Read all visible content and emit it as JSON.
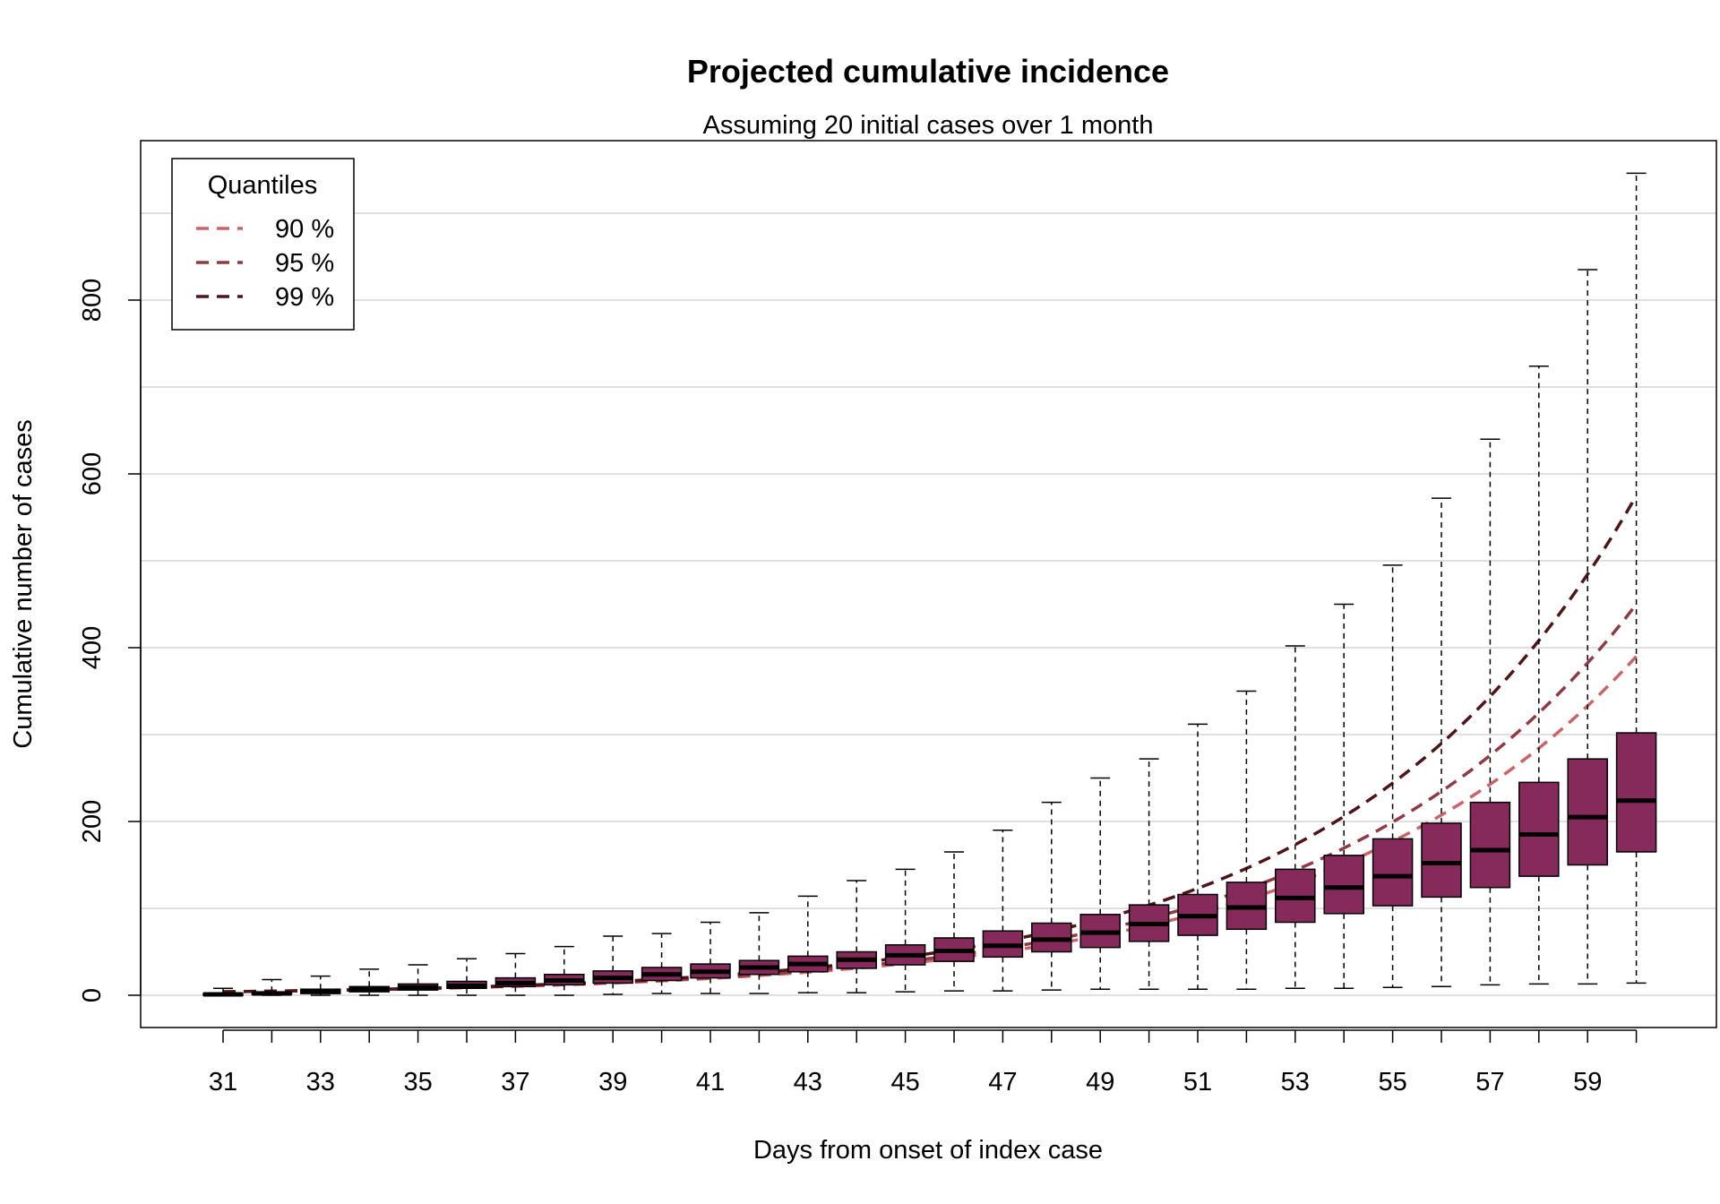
{
  "colors": {
    "box_fill": "#852a5a",
    "q90": "#c96468",
    "q95": "#8f3a45",
    "q99": "#4d1519",
    "grid": "#d6d6d6"
  },
  "chart_data": {
    "type": "boxplot",
    "title": "Projected cumulative incidence",
    "subtitle": "Assuming 20 initial cases over 1 month",
    "xlabel": "Days from onset of index case",
    "ylabel": "Cumulative number of cases",
    "ylim": [
      -38,
      980
    ],
    "y_ticks": [
      0,
      200,
      400,
      600,
      800
    ],
    "x_tick_labels": [
      31,
      33,
      35,
      37,
      39,
      41,
      43,
      45,
      47,
      49,
      51,
      53,
      55,
      57,
      59
    ],
    "grid": true,
    "legend": {
      "title": "Quantiles",
      "position": "top-left",
      "entries": [
        {
          "label": "90 %",
          "color_key": "q90"
        },
        {
          "label": "95 %",
          "color_key": "q95"
        },
        {
          "label": "99 %",
          "color_key": "q99"
        }
      ]
    },
    "boxes": [
      {
        "day": 31,
        "min": 0,
        "q1": 0,
        "median": 1,
        "q3": 2,
        "max": 8
      },
      {
        "day": 32,
        "min": 0,
        "q1": 1,
        "median": 2,
        "q3": 4,
        "max": 18
      },
      {
        "day": 33,
        "min": 0,
        "q1": 2,
        "median": 4,
        "q3": 7,
        "max": 22
      },
      {
        "day": 34,
        "min": 0,
        "q1": 4,
        "median": 7,
        "q3": 10,
        "max": 30
      },
      {
        "day": 35,
        "min": 0,
        "q1": 6,
        "median": 9,
        "q3": 13,
        "max": 35
      },
      {
        "day": 36,
        "min": 0,
        "q1": 8,
        "median": 11,
        "q3": 16,
        "max": 42
      },
      {
        "day": 37,
        "min": 0,
        "q1": 10,
        "median": 14,
        "q3": 20,
        "max": 48
      },
      {
        "day": 38,
        "min": 0,
        "q1": 12,
        "median": 17,
        "q3": 24,
        "max": 56
      },
      {
        "day": 39,
        "min": 1,
        "q1": 14,
        "median": 20,
        "q3": 28,
        "max": 68
      },
      {
        "day": 40,
        "min": 2,
        "q1": 17,
        "median": 24,
        "q3": 32,
        "max": 71
      },
      {
        "day": 41,
        "min": 2,
        "q1": 20,
        "median": 27,
        "q3": 36,
        "max": 84
      },
      {
        "day": 42,
        "min": 2,
        "q1": 24,
        "median": 32,
        "q3": 40,
        "max": 95
      },
      {
        "day": 43,
        "min": 3,
        "q1": 27,
        "median": 36,
        "q3": 45,
        "max": 114
      },
      {
        "day": 44,
        "min": 3,
        "q1": 31,
        "median": 41,
        "q3": 50,
        "max": 132
      },
      {
        "day": 45,
        "min": 4,
        "q1": 35,
        "median": 46,
        "q3": 58,
        "max": 145
      },
      {
        "day": 46,
        "min": 5,
        "q1": 39,
        "median": 51,
        "q3": 66,
        "max": 165
      },
      {
        "day": 47,
        "min": 5,
        "q1": 44,
        "median": 57,
        "q3": 74,
        "max": 190
      },
      {
        "day": 48,
        "min": 6,
        "q1": 50,
        "median": 64,
        "q3": 83,
        "max": 222
      },
      {
        "day": 49,
        "min": 7,
        "q1": 55,
        "median": 72,
        "q3": 93,
        "max": 250
      },
      {
        "day": 50,
        "min": 7,
        "q1": 62,
        "median": 82,
        "q3": 104,
        "max": 272
      },
      {
        "day": 51,
        "min": 7,
        "q1": 69,
        "median": 91,
        "q3": 116,
        "max": 312
      },
      {
        "day": 52,
        "min": 7,
        "q1": 76,
        "median": 101,
        "q3": 130,
        "max": 350
      },
      {
        "day": 53,
        "min": 8,
        "q1": 84,
        "median": 112,
        "q3": 145,
        "max": 402
      },
      {
        "day": 54,
        "min": 8,
        "q1": 94,
        "median": 124,
        "q3": 161,
        "max": 450
      },
      {
        "day": 55,
        "min": 9,
        "q1": 103,
        "median": 137,
        "q3": 180,
        "max": 495
      },
      {
        "day": 56,
        "min": 10,
        "q1": 113,
        "median": 152,
        "q3": 198,
        "max": 572
      },
      {
        "day": 57,
        "min": 12,
        "q1": 124,
        "median": 167,
        "q3": 222,
        "max": 640
      },
      {
        "day": 58,
        "min": 13,
        "q1": 137,
        "median": 185,
        "q3": 245,
        "max": 724
      },
      {
        "day": 59,
        "min": 13,
        "q1": 150,
        "median": 205,
        "q3": 272,
        "max": 835
      },
      {
        "day": 60,
        "min": 14,
        "q1": 165,
        "median": 224,
        "q3": 302,
        "max": 946
      }
    ],
    "quantile_lines": [
      {
        "label": "90 %",
        "color_key": "q90",
        "x": [
          31,
          60
        ],
        "y": [
          4,
          390
        ]
      },
      {
        "label": "95 %",
        "color_key": "q95",
        "x": [
          31,
          60
        ],
        "y": [
          4,
          450
        ]
      },
      {
        "label": "99 %",
        "color_key": "q99",
        "x": [
          31,
          60
        ],
        "y": [
          4,
          575
        ]
      }
    ]
  }
}
